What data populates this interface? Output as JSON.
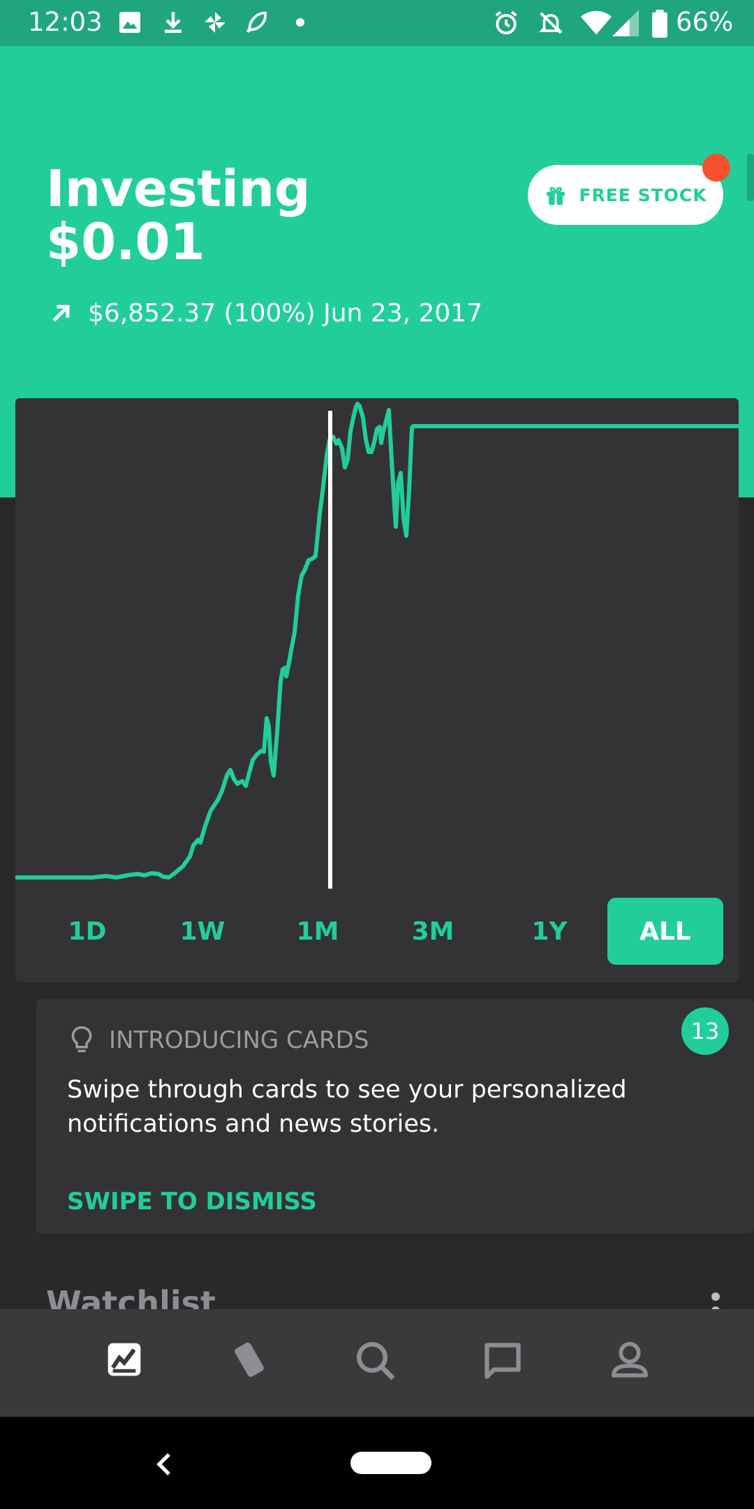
{
  "status_bar": {
    "time": "12:03",
    "battery": "66%"
  },
  "header": {
    "title": "Investing",
    "balance": "$0.01",
    "change_text": "$6,852.37 (100%) Jun 23, 2017",
    "free_stock_label": "FREE STOCK"
  },
  "ranges": [
    {
      "label": "1D"
    },
    {
      "label": "1W"
    },
    {
      "label": "1M"
    },
    {
      "label": "3M"
    },
    {
      "label": "1Y"
    },
    {
      "label": "ALL",
      "active": true
    }
  ],
  "card": {
    "heading": "INTRODUCING CARDS",
    "body": "Swipe through cards to see your personalized notifications and news stories.",
    "dismiss": "SWIPE TO DISMISS",
    "count": "13"
  },
  "watchlist": {
    "title": "Watchlist"
  },
  "colors": {
    "accent": "#21ce99",
    "background": "#29292b",
    "card": "#333335",
    "alert": "#f4512c"
  }
}
